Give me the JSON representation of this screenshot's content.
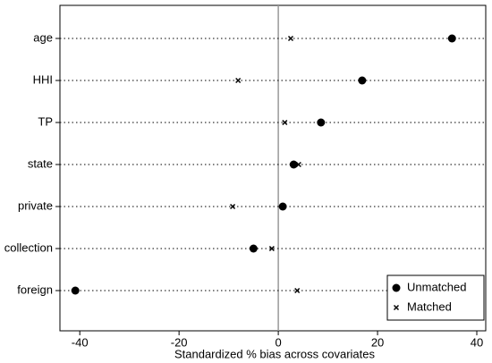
{
  "chart_data": {
    "type": "dot",
    "x_label": "Standardized % bias across covariates",
    "categories": [
      "age",
      "HHI",
      "TP",
      "state",
      "private",
      "collection",
      "foreign"
    ],
    "series": [
      {
        "name": "Unmatched",
        "color": "#000000",
        "marker": "circle",
        "values": [
          35.0,
          16.9,
          8.6,
          3.1,
          0.9,
          -5.0,
          -40.9
        ]
      },
      {
        "name": "Matched",
        "color": "#000000",
        "marker": "x",
        "values": [
          2.5,
          -8.1,
          1.3,
          4.1,
          -9.2,
          -1.3,
          3.8
        ]
      }
    ],
    "xlim": [
      -44,
      41.8
    ],
    "xticks": [
      -40,
      -20,
      0,
      20,
      40
    ],
    "zero_line": true,
    "legend": "bottom-right"
  }
}
